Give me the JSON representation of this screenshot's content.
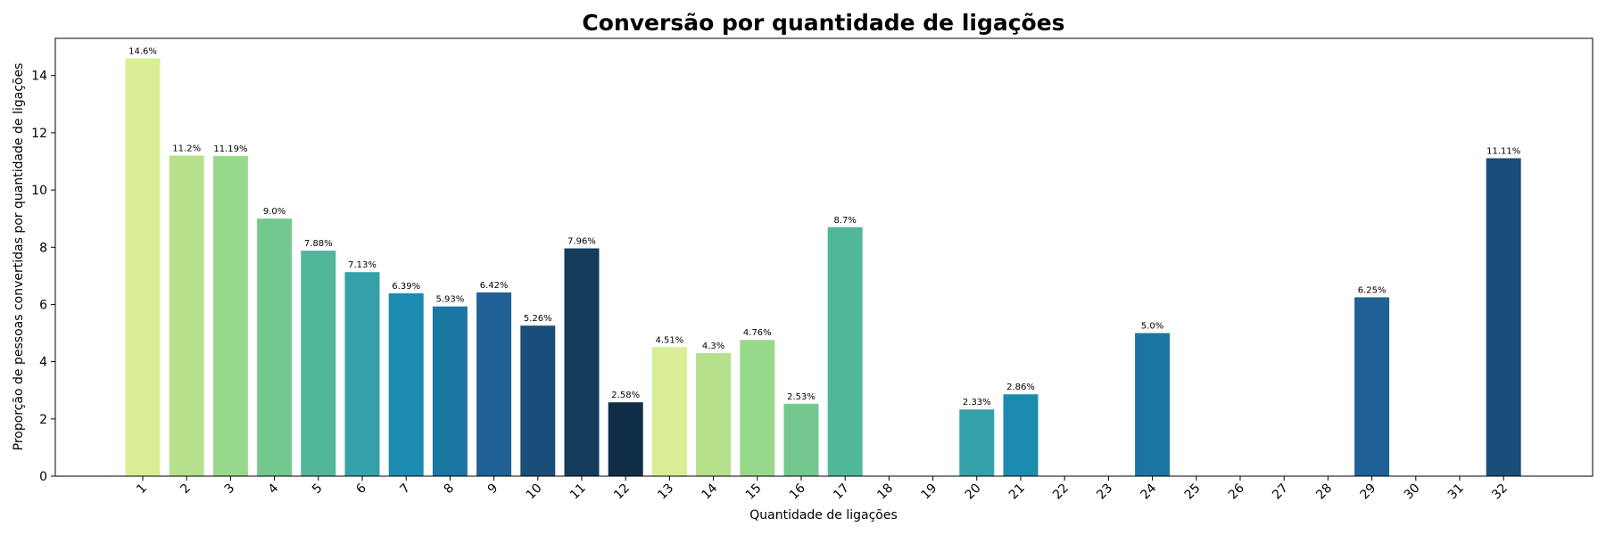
{
  "chart_data": {
    "type": "bar",
    "title": "Conversão por quantidade de ligações",
    "xlabel": "Quantidade de ligações",
    "ylabel": "Proporção de pessoas convertidas por quantidade de ligações",
    "ylim": [
      0,
      15.3
    ],
    "yticks": [
      0,
      2,
      4,
      6,
      8,
      10,
      12,
      14
    ],
    "categories": [
      "1",
      "2",
      "3",
      "4",
      "5",
      "6",
      "7",
      "8",
      "9",
      "10",
      "11",
      "12",
      "13",
      "14",
      "15",
      "16",
      "17",
      "18",
      "19",
      "20",
      "21",
      "22",
      "23",
      "24",
      "25",
      "26",
      "27",
      "28",
      "29",
      "30",
      "31",
      "32"
    ],
    "values": [
      14.6,
      11.2,
      11.19,
      9.0,
      7.88,
      7.13,
      6.39,
      5.93,
      6.42,
      5.26,
      7.96,
      2.58,
      4.51,
      4.3,
      4.76,
      2.53,
      8.7,
      0,
      0,
      2.33,
      2.86,
      0,
      0,
      5.0,
      0,
      0,
      0,
      0,
      6.25,
      0,
      0,
      11.11
    ],
    "labels": [
      "14.6%",
      "11.2%",
      "11.19%",
      "9.0%",
      "7.88%",
      "7.13%",
      "6.39%",
      "5.93%",
      "6.42%",
      "5.26%",
      "7.96%",
      "2.58%",
      "4.51%",
      "4.3%",
      "4.76%",
      "2.53%",
      "8.7%",
      "",
      "",
      "2.33%",
      "2.86%",
      "",
      "",
      "5.0%",
      "",
      "",
      "",
      "",
      "6.25%",
      "",
      "",
      "11.11%"
    ],
    "colors": [
      "#d9ee94",
      "#b7e08c",
      "#98d88a",
      "#73c890",
      "#51b79b",
      "#35a1a8",
      "#1b8bb0",
      "#1c76a2",
      "#1f6194",
      "#1a4e7a",
      "#143c5c",
      "#102d47",
      "#d9ee94",
      "#b7e08c",
      "#98d88a",
      "#73c890",
      "#51b79b",
      "#35a1a8",
      "#1b8bb0",
      "#35a1a8",
      "#1b8bb0",
      "#1c76a2",
      "#1f6194",
      "#1c76a2",
      "#1f6194",
      "#1a4e7a",
      "#143c5c",
      "#102d47",
      "#1f6194",
      "#1a4e7a",
      "#143c5c",
      "#1a4e7a"
    ],
    "grid": false,
    "legend": "none"
  }
}
